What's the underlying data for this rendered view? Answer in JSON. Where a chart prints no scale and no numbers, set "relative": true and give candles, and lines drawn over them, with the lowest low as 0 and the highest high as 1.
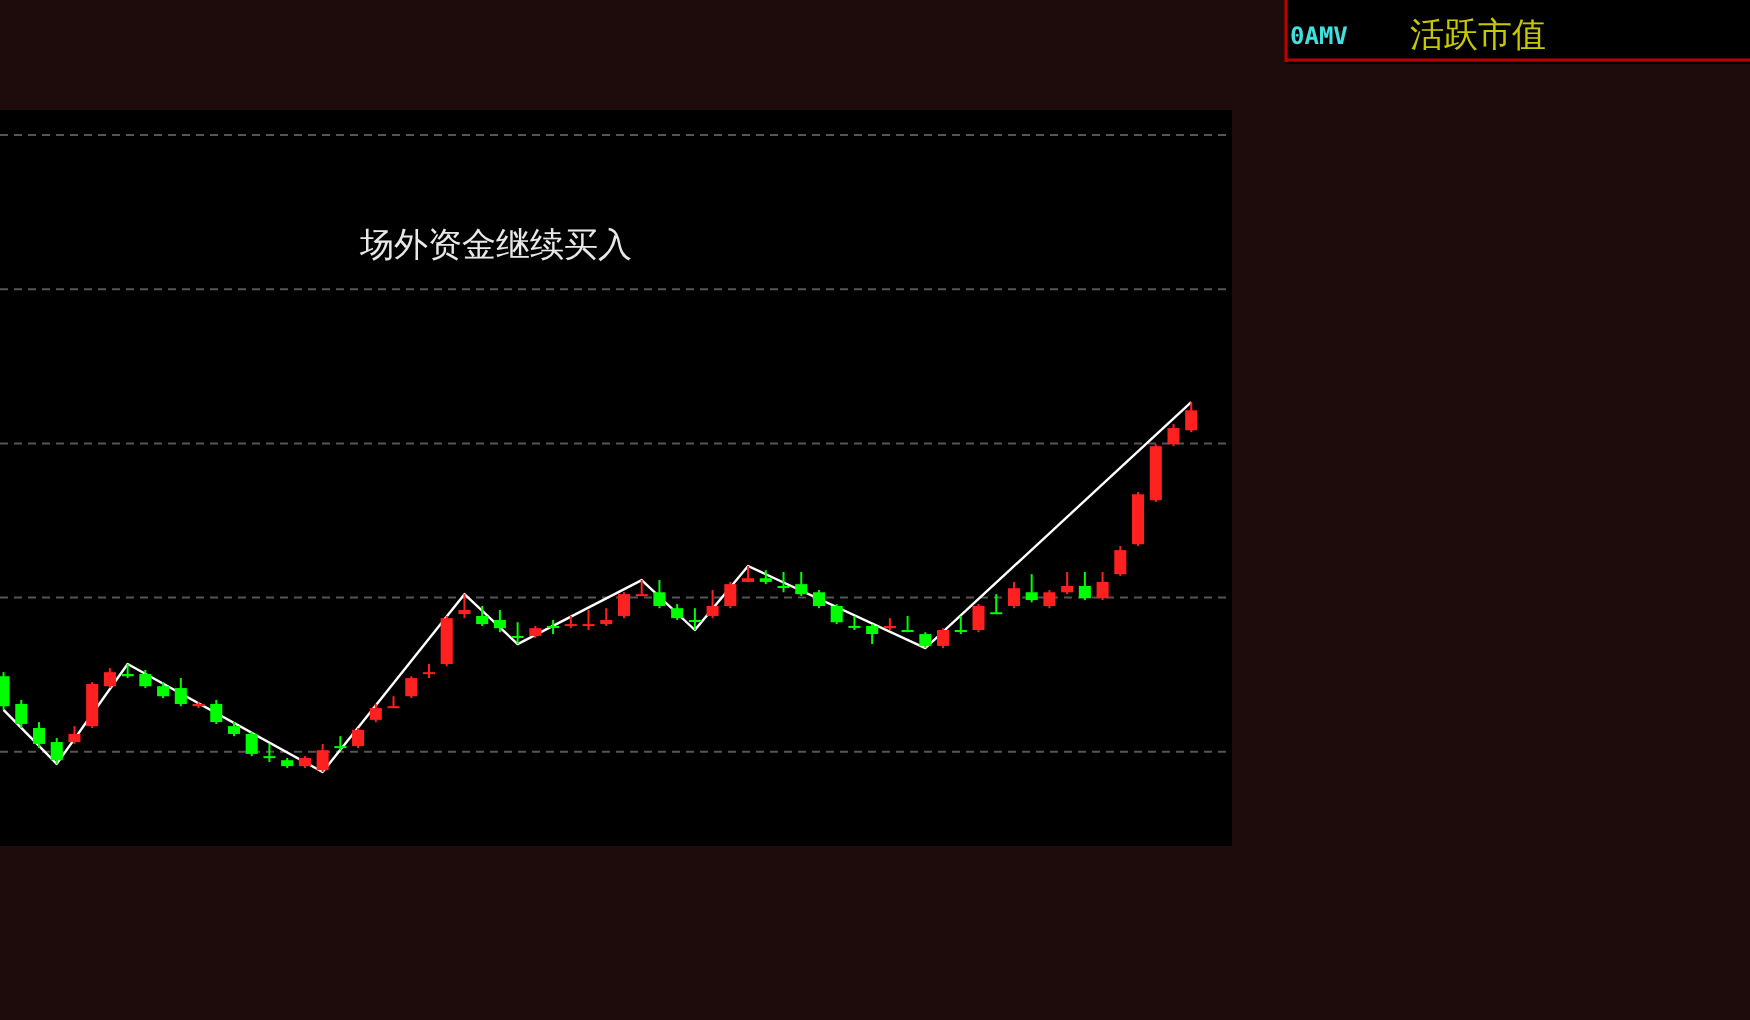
{
  "chart_data": {
    "type": "candlestick",
    "relative": true,
    "grid": true,
    "annotations": [
      "场外资金继续买入",
      "0AMV",
      "活跃市值"
    ],
    "categories": [
      null,
      null,
      null,
      null,
      null,
      null,
      null,
      null,
      null,
      null,
      null,
      null,
      null,
      null,
      null,
      null,
      null,
      null,
      null,
      null,
      null,
      null,
      null,
      null,
      null,
      null,
      null,
      null,
      null,
      null,
      null,
      null,
      null,
      null,
      null,
      null,
      null,
      null,
      null,
      null,
      null,
      null,
      null,
      null,
      null,
      null,
      null,
      null,
      null,
      null,
      null,
      null,
      null,
      null,
      null,
      null,
      null,
      null,
      null,
      null,
      null,
      null,
      null,
      null,
      null,
      null,
      null,
      null
    ],
    "ohlc": [
      [
        0.259,
        0.27,
        0.168,
        0.178
      ],
      [
        0.184,
        0.195,
        0.119,
        0.13
      ],
      [
        0.119,
        0.135,
        0.065,
        0.076
      ],
      [
        0.081,
        0.092,
        0.022,
        0.032
      ],
      [
        0.081,
        0.124,
        0.076,
        0.103
      ],
      [
        0.124,
        0.243,
        0.119,
        0.238
      ],
      [
        0.232,
        0.281,
        0.227,
        0.27
      ],
      [
        0.265,
        0.292,
        0.254,
        0.259
      ],
      [
        0.265,
        0.276,
        0.227,
        0.232
      ],
      [
        0.232,
        0.243,
        0.2,
        0.205
      ],
      [
        0.227,
        0.254,
        0.178,
        0.184
      ],
      [
        0.178,
        0.189,
        0.173,
        0.184
      ],
      [
        0.184,
        0.195,
        0.13,
        0.135
      ],
      [
        0.124,
        0.135,
        0.097,
        0.103
      ],
      [
        0.103,
        0.108,
        0.043,
        0.049
      ],
      [
        0.043,
        0.076,
        0.027,
        0.041
      ],
      [
        0.032,
        0.038,
        0.011,
        0.016
      ],
      [
        0.016,
        0.043,
        0.011,
        0.038
      ],
      [
        0.005,
        0.076,
        0,
        0.059
      ],
      [
        0.07,
        0.097,
        0.059,
        0.068
      ],
      [
        0.07,
        0.119,
        0.065,
        0.114
      ],
      [
        0.141,
        0.184,
        0.135,
        0.173
      ],
      [
        0.173,
        0.205,
        0.173,
        0.178
      ],
      [
        0.205,
        0.259,
        0.2,
        0.254
      ],
      [
        0.265,
        0.292,
        0.254,
        0.27
      ],
      [
        0.292,
        0.422,
        0.286,
        0.416
      ],
      [
        0.427,
        0.481,
        0.416,
        0.438
      ],
      [
        0.422,
        0.449,
        0.395,
        0.4
      ],
      [
        0.411,
        0.438,
        0.378,
        0.389
      ],
      [
        0.368,
        0.405,
        0.346,
        0.365
      ],
      [
        0.368,
        0.395,
        0.362,
        0.389
      ],
      [
        0.395,
        0.411,
        0.373,
        0.392
      ],
      [
        0.395,
        0.422,
        0.389,
        0.4
      ],
      [
        0.397,
        0.438,
        0.384,
        0.4
      ],
      [
        0.4,
        0.443,
        0.395,
        0.411
      ],
      [
        0.422,
        0.486,
        0.416,
        0.481
      ],
      [
        0.476,
        0.519,
        0.476,
        0.481
      ],
      [
        0.486,
        0.519,
        0.443,
        0.449
      ],
      [
        0.443,
        0.454,
        0.411,
        0.416
      ],
      [
        0.411,
        0.443,
        0.384,
        0.408
      ],
      [
        0.422,
        0.492,
        0.416,
        0.449
      ],
      [
        0.449,
        0.514,
        0.443,
        0.508
      ],
      [
        0.514,
        0.557,
        0.514,
        0.524
      ],
      [
        0.524,
        0.546,
        0.508,
        0.514
      ],
      [
        0.503,
        0.541,
        0.486,
        0.5
      ],
      [
        0.508,
        0.541,
        0.476,
        0.481
      ],
      [
        0.486,
        0.492,
        0.443,
        0.449
      ],
      [
        0.449,
        0.454,
        0.4,
        0.405
      ],
      [
        0.395,
        0.422,
        0.384,
        0.392
      ],
      [
        0.395,
        0.4,
        0.346,
        0.373
      ],
      [
        0.389,
        0.416,
        0.384,
        0.395
      ],
      [
        0.384,
        0.422,
        0.378,
        0.381
      ],
      [
        0.373,
        0.378,
        0.335,
        0.341
      ],
      [
        0.341,
        0.389,
        0.335,
        0.384
      ],
      [
        0.384,
        0.422,
        0.373,
        0.381
      ],
      [
        0.384,
        0.454,
        0.378,
        0.449
      ],
      [
        0.432,
        0.481,
        0.427,
        0.43
      ],
      [
        0.449,
        0.514,
        0.443,
        0.497
      ],
      [
        0.486,
        0.535,
        0.459,
        0.465
      ],
      [
        0.449,
        0.492,
        0.443,
        0.486
      ],
      [
        0.486,
        0.541,
        0.481,
        0.503
      ],
      [
        0.503,
        0.541,
        0.465,
        0.47
      ],
      [
        0.47,
        0.541,
        0.465,
        0.514
      ],
      [
        0.535,
        0.611,
        0.53,
        0.6
      ],
      [
        0.616,
        0.757,
        0.611,
        0.751
      ],
      [
        0.735,
        0.886,
        0.73,
        0.881
      ],
      [
        0.886,
        0.941,
        0.881,
        0.93
      ],
      [
        0.924,
        1,
        0.919,
        0.978
      ]
    ],
    "colors": [
      "#00ff00",
      "#00ff00",
      "#00ff00",
      "#00ff00",
      "#ff2020",
      "#ff2020",
      "#ff2020",
      "#00ff00",
      "#00ff00",
      "#00ff00",
      "#00ff00",
      "#ff2020",
      "#00ff00",
      "#00ff00",
      "#00ff00",
      "#00ff00",
      "#00ff00",
      "#ff2020",
      "#ff2020",
      "#00ff00",
      "#ff2020",
      "#ff2020",
      "#ff2020",
      "#ff2020",
      "#ff2020",
      "#ff2020",
      "#ff2020",
      "#00ff00",
      "#00ff00",
      "#00ff00",
      "#ff2020",
      "#00ff00",
      "#ff2020",
      "#ff2020",
      "#ff2020",
      "#ff2020",
      "#ff2020",
      "#00ff00",
      "#00ff00",
      "#00ff00",
      "#ff2020",
      "#ff2020",
      "#ff2020",
      "#00ff00",
      "#00ff00",
      "#00ff00",
      "#00ff00",
      "#00ff00",
      "#00ff00",
      "#00ff00",
      "#ff2020",
      "#00ff00",
      "#00ff00",
      "#ff2020",
      "#00ff00",
      "#ff2020",
      "#00ff00",
      "#ff2020",
      "#00ff00",
      "#ff2020",
      "#ff2020",
      "#00ff00",
      "#ff2020",
      "#ff2020",
      "#ff2020",
      "#ff2020",
      "#ff2020",
      "#ff2020"
    ],
    "series": [
      {
        "type": "line",
        "color": "#ffffff",
        "values": [
          0.168,
          null,
          null,
          0.022,
          null,
          null,
          null,
          0.292,
          null,
          null,
          null,
          null,
          null,
          null,
          null,
          null,
          null,
          null,
          0,
          null,
          null,
          null,
          null,
          null,
          null,
          null,
          0.481,
          null,
          null,
          0.346,
          null,
          null,
          null,
          null,
          null,
          null,
          0.519,
          null,
          null,
          0.384,
          null,
          null,
          0.557,
          null,
          null,
          null,
          null,
          null,
          null,
          null,
          null,
          null,
          0.335,
          null,
          null,
          null,
          null,
          null,
          null,
          null,
          null,
          null,
          null,
          null,
          null,
          null,
          null,
          1
        ]
      }
    ]
  }
}
